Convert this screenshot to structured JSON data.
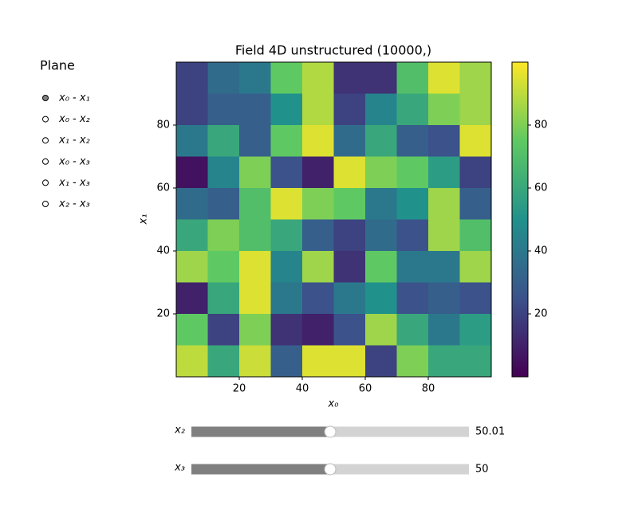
{
  "chart_data": {
    "type": "image",
    "title": "Field 4D unstructured (10000,)",
    "xlabel": "x₀",
    "ylabel": "x₁",
    "xlim": [
      0,
      100
    ],
    "ylim": [
      0,
      100
    ],
    "xticks": [
      20,
      40,
      60,
      80
    ],
    "yticks": [
      20,
      40,
      60,
      80
    ],
    "colormap": "viridis",
    "clim": [
      0,
      100
    ],
    "cticks": [
      20,
      40,
      60,
      80
    ],
    "z": [
      [
        20,
        35,
        40,
        75,
        88,
        15,
        15,
        70,
        95,
        85
      ],
      [
        20,
        30,
        30,
        50,
        88,
        20,
        45,
        60,
        80,
        85
      ],
      [
        40,
        60,
        30,
        75,
        95,
        35,
        60,
        30,
        25,
        95
      ],
      [
        5,
        45,
        80,
        25,
        10,
        95,
        80,
        75,
        55,
        20
      ],
      [
        35,
        30,
        70,
        95,
        80,
        75,
        40,
        50,
        85,
        30
      ],
      [
        60,
        80,
        70,
        60,
        30,
        20,
        35,
        25,
        85,
        70
      ],
      [
        85,
        75,
        95,
        45,
        85,
        15,
        75,
        40,
        40,
        85
      ],
      [
        10,
        60,
        95,
        40,
        25,
        40,
        50,
        25,
        30,
        25
      ],
      [
        75,
        20,
        80,
        15,
        10,
        25,
        85,
        60,
        40,
        55
      ],
      [
        90,
        60,
        92,
        30,
        95,
        95,
        20,
        80,
        60,
        60
      ]
    ]
  },
  "radio": {
    "title": "Plane",
    "options": [
      "x₀ - x₁",
      "x₀ - x₂",
      "x₁ - x₂",
      "x₀ - x₃",
      "x₁ - x₃",
      "x₂ - x₃"
    ],
    "active": 0
  },
  "sliders": [
    {
      "label": "x₂",
      "value": 50.01,
      "min": 0,
      "max": 100
    },
    {
      "label": "x₃",
      "value": 50,
      "min": 0,
      "max": 100
    }
  ]
}
